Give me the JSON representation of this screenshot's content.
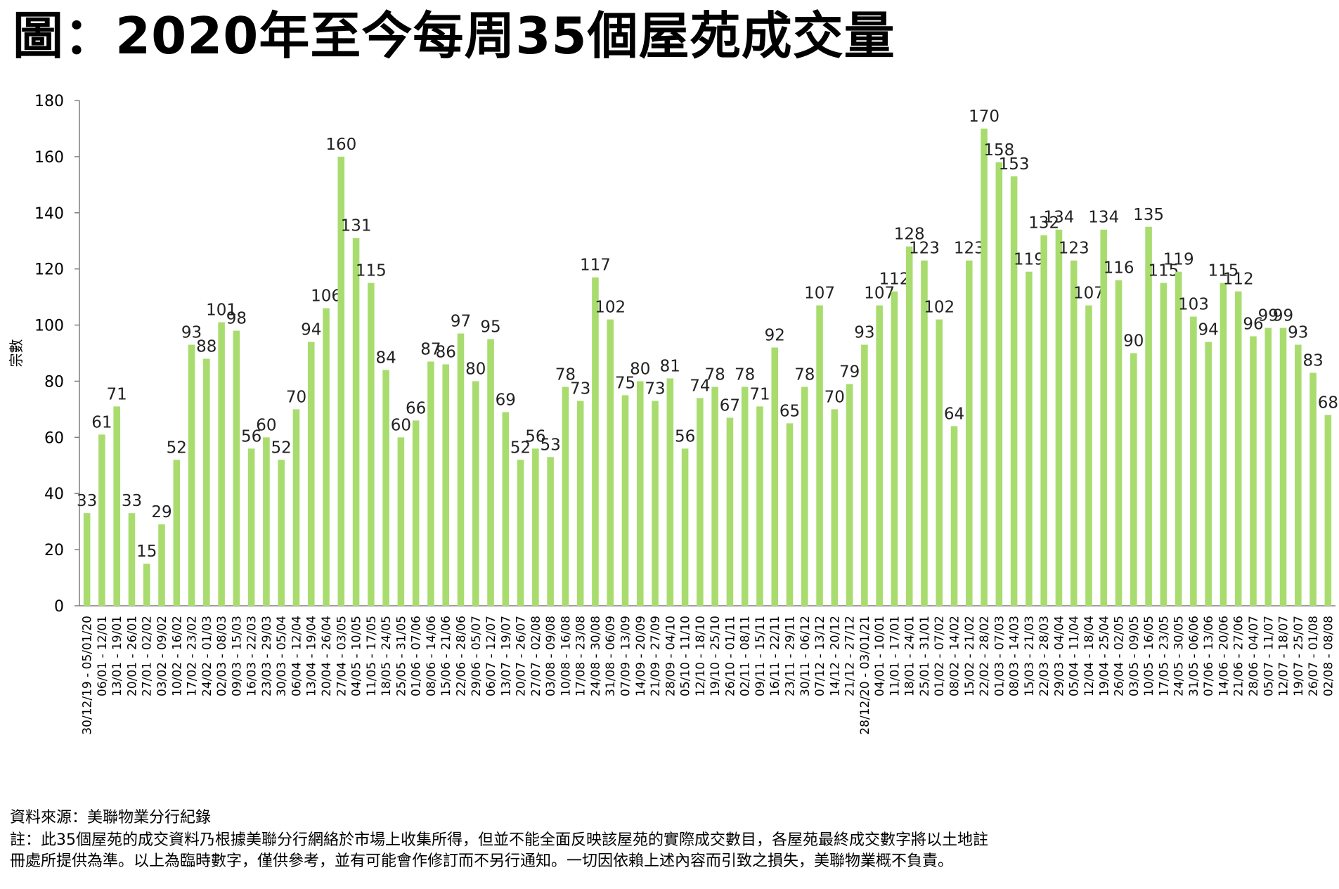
{
  "title": "圖：2020年至今每周35個屋苑成交量",
  "footnotes": {
    "source": "資料來源：美聯物業分行紀錄",
    "note_line1": "註：此35個屋苑的成交資料乃根據美聯分行網絡於市場上收集所得，但並不能全面反映該屋苑的實際成交數目，各屋苑最終成交數字將以土地註",
    "note_line2": "冊處所提供為準。以上為臨時數字，僅供參考，並有可能會作修訂而不另行通知。一切因依賴上述內容而引致之損失，美聯物業概不負責。"
  },
  "chart_data": {
    "type": "bar",
    "title": "圖：2020年至今每周35個屋苑成交量",
    "xlabel": "",
    "ylabel": "宗數",
    "ylim": [
      0,
      180
    ],
    "yticks": [
      0,
      20,
      40,
      60,
      80,
      100,
      120,
      140,
      160,
      180
    ],
    "grid": false,
    "bar_color": "#a9dc6e",
    "categories": [
      "30/12/19 - 05/01/20",
      "06/01 - 12/01",
      "13/01 - 19/01",
      "20/01 - 26/01",
      "27/01 - 02/02",
      "03/02 - 09/02",
      "10/02 - 16/02",
      "17/02 - 23/02",
      "24/02 - 01/03",
      "02/03 - 08/03",
      "09/03 - 15/03",
      "16/03 - 22/03",
      "23/03 - 29/03",
      "30/03 - 05/04",
      "06/04 - 12/04",
      "13/04 - 19/04",
      "20/04 - 26/04",
      "27/04 - 03/05",
      "04/05 - 10/05",
      "11/05 - 17/05",
      "18/05 - 24/05",
      "25/05 - 31/05",
      "01/06 - 07/06",
      "08/06 - 14/06",
      "15/06 - 21/06",
      "22/06 - 28/06",
      "29/06 - 05/07",
      "06/07 - 12/07",
      "13/07 - 19/07",
      "20/07 - 26/07",
      "27/07 - 02/08",
      "03/08 - 09/08",
      "10/08 - 16/08",
      "17/08 - 23/08",
      "24/08 - 30/08",
      "31/08 - 06/09",
      "07/09 - 13/09",
      "14/09 - 20/09",
      "21/09 - 27/09",
      "28/09 - 04/10",
      "05/10 - 11/10",
      "12/10 - 18/10",
      "19/10 - 25/10",
      "26/10 - 01/11",
      "02/11 - 08/11",
      "09/11 - 15/11",
      "16/11 - 22/11",
      "23/11 - 29/11",
      "30/11 - 06/12",
      "07/12 - 13/12",
      "14/12 - 20/12",
      "21/12 - 27/12",
      "28/12/20 - 03/01/21",
      "04/01 - 10/01",
      "11/01 - 17/01",
      "18/01 - 24/01",
      "25/01 - 31/01",
      "01/02 - 07/02",
      "08/02 - 14/02",
      "15/02 - 21/02",
      "22/02 - 28/02",
      "01/03 - 07/03",
      "08/03 - 14/03",
      "15/03 - 21/03",
      "22/03 - 28/03",
      "29/03 - 04/04",
      "05/04 - 11/04",
      "12/04 - 18/04",
      "19/04 - 25/04",
      "26/04 - 02/05",
      "03/05 - 09/05",
      "10/05 - 16/05",
      "17/05 - 23/05",
      "24/05 - 30/05",
      "31/05 - 06/06",
      "07/06 - 13/06",
      "14/06 - 20/06",
      "21/06 - 27/06",
      "28/06 - 04/07",
      "05/07 - 11/07",
      "12/07 - 18/07",
      "19/07 - 25/07",
      "26/07 - 01/08",
      "02/08 - 08/08"
    ],
    "values": [
      33,
      61,
      71,
      33,
      15,
      29,
      52,
      93,
      88,
      101,
      98,
      56,
      60,
      52,
      70,
      94,
      106,
      160,
      131,
      115,
      84,
      60,
      66,
      87,
      86,
      97,
      80,
      95,
      69,
      52,
      56,
      53,
      78,
      73,
      117,
      102,
      75,
      80,
      73,
      81,
      56,
      74,
      78,
      67,
      78,
      71,
      92,
      65,
      78,
      107,
      70,
      79,
      93,
      107,
      112,
      128,
      123,
      102,
      64,
      123,
      170,
      158,
      153,
      119,
      132,
      134,
      123,
      107,
      134,
      116,
      90,
      135,
      115,
      119,
      103,
      94,
      115,
      112,
      96,
      99,
      99,
      93,
      83,
      68
    ]
  }
}
